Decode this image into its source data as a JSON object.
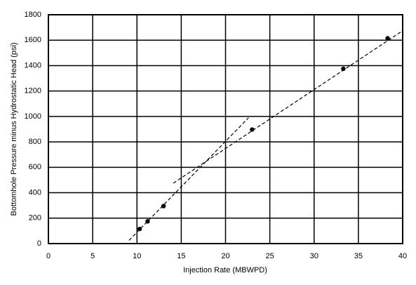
{
  "chart_data": {
    "type": "scatter",
    "xlabel": "Injection Rate (MBWPD)",
    "ylabel": "Bottomhole Pressure minus Hydrostatic Head (psi)",
    "xlim": [
      0,
      40
    ],
    "xticks": [
      0,
      5,
      10,
      15,
      20,
      25,
      30,
      35,
      40
    ],
    "ylim": [
      0,
      1800
    ],
    "yticks": [
      0,
      200,
      400,
      600,
      800,
      1000,
      1200,
      1400,
      1600,
      1800
    ],
    "grid": true,
    "series": [
      {
        "type": "scatter",
        "color": "#000000",
        "x": [
          10.3,
          11.2,
          13,
          23,
          33.3,
          38.3
        ],
        "values": [
          115,
          175,
          295,
          897,
          1375,
          1615
        ]
      },
      {
        "type": "line",
        "dashed": true,
        "color": "#000000",
        "x": [
          9.1,
          22.6
        ],
        "values": [
          25,
          990
        ]
      },
      {
        "type": "line",
        "dashed": true,
        "color": "#000000",
        "x": [
          14.1,
          39.8
        ],
        "values": [
          475,
          1665
        ]
      }
    ]
  }
}
